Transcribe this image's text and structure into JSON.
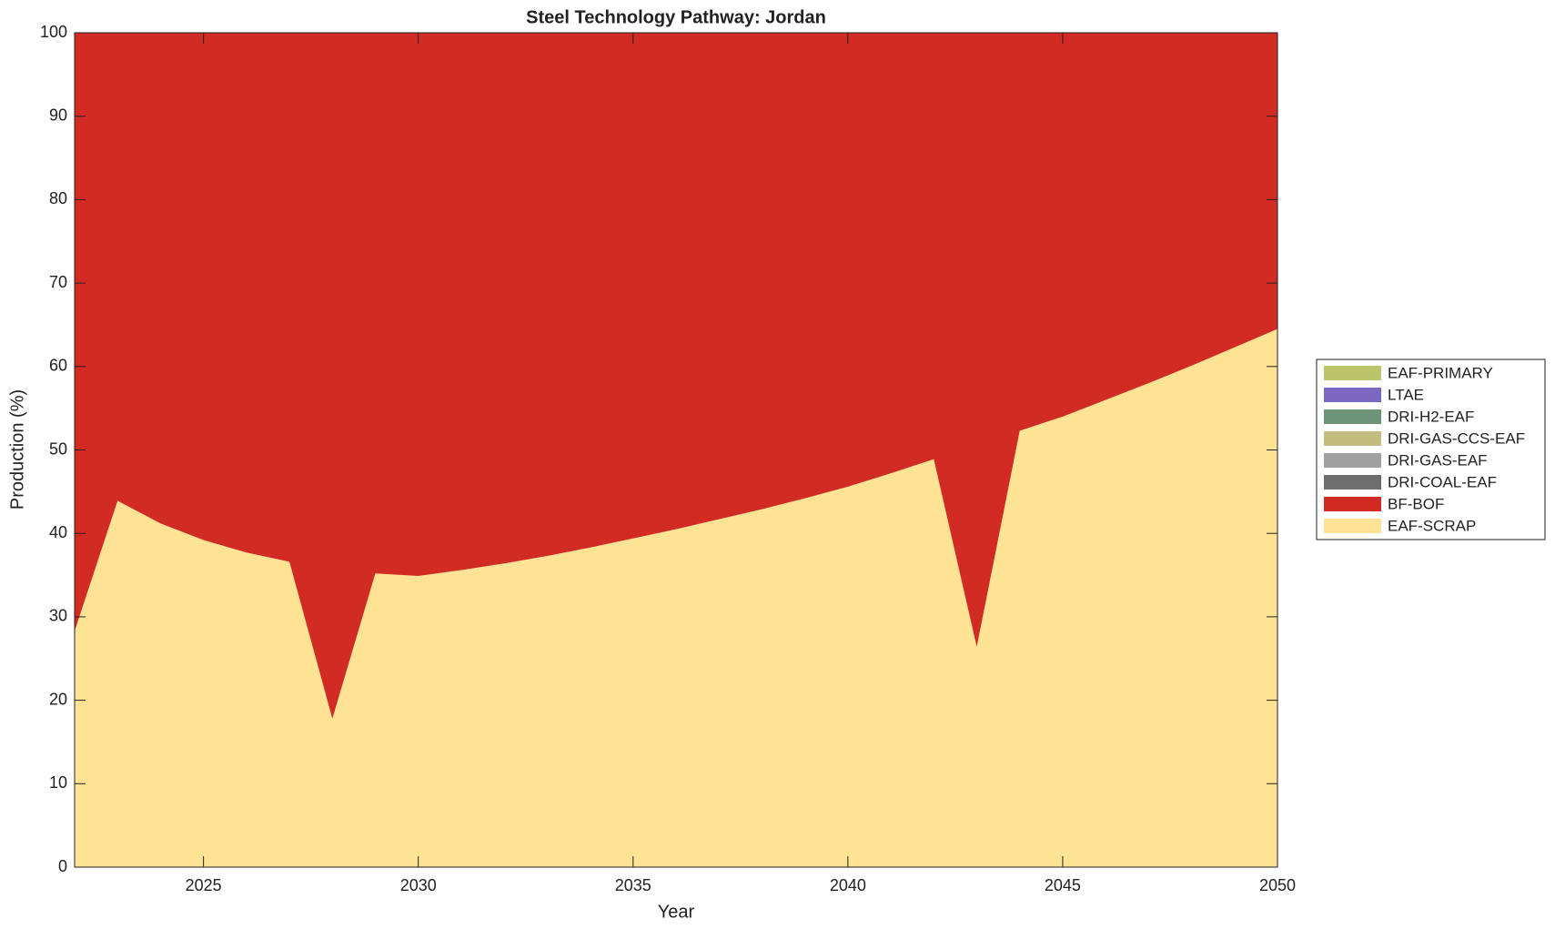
{
  "chart_data": {
    "type": "stacked-area",
    "title": "Steel Technology Pathway: Jordan",
    "xlabel": "Year",
    "ylabel": "Production (%)",
    "x": [
      2022,
      2023,
      2024,
      2025,
      2026,
      2027,
      2028,
      2029,
      2030,
      2031,
      2032,
      2033,
      2034,
      2035,
      2036,
      2037,
      2038,
      2039,
      2040,
      2041,
      2042,
      2043,
      2044,
      2045,
      2046,
      2047,
      2048,
      2049,
      2050
    ],
    "series": [
      {
        "name": "EAF-SCRAP",
        "color": "#fde393",
        "values": [
          28.3,
          43.9,
          41.2,
          39.2,
          37.7,
          36.6,
          17.8,
          35.2,
          34.9,
          35.6,
          36.4,
          37.3,
          38.3,
          39.4,
          40.5,
          41.7,
          42.9,
          44.2,
          45.6,
          47.2,
          48.9,
          26.4,
          52.3,
          54.0,
          56.0,
          58.0,
          60.1,
          62.3,
          64.5
        ]
      },
      {
        "name": "BF-BOF",
        "color": "#d12b24",
        "values": [
          71.7,
          56.1,
          58.8,
          60.8,
          62.3,
          63.4,
          82.2,
          64.8,
          65.1,
          64.4,
          63.6,
          62.7,
          61.7,
          60.6,
          59.5,
          58.3,
          57.1,
          55.8,
          54.4,
          52.8,
          51.1,
          73.6,
          47.7,
          46.0,
          44.0,
          42.0,
          39.9,
          37.7,
          35.5
        ]
      },
      {
        "name": "DRI-COAL-EAF",
        "color": "#6e6e6e",
        "values": [
          0,
          0,
          0,
          0,
          0,
          0,
          0,
          0,
          0,
          0,
          0,
          0,
          0,
          0,
          0,
          0,
          0,
          0,
          0,
          0,
          0,
          0,
          0,
          0,
          0,
          0,
          0,
          0,
          0
        ]
      },
      {
        "name": "DRI-GAS-EAF",
        "color": "#a0a0a0",
        "values": [
          0,
          0,
          0,
          0,
          0,
          0,
          0,
          0,
          0,
          0,
          0,
          0,
          0,
          0,
          0,
          0,
          0,
          0,
          0,
          0,
          0,
          0,
          0,
          0,
          0,
          0,
          0,
          0,
          0
        ]
      },
      {
        "name": "DRI-GAS-CCS-EAF",
        "color": "#c4bb80",
        "values": [
          0,
          0,
          0,
          0,
          0,
          0,
          0,
          0,
          0,
          0,
          0,
          0,
          0,
          0,
          0,
          0,
          0,
          0,
          0,
          0,
          0,
          0,
          0,
          0,
          0,
          0,
          0,
          0,
          0
        ]
      },
      {
        "name": "DRI-H2-EAF",
        "color": "#6e9478",
        "values": [
          0,
          0,
          0,
          0,
          0,
          0,
          0,
          0,
          0,
          0,
          0,
          0,
          0,
          0,
          0,
          0,
          0,
          0,
          0,
          0,
          0,
          0,
          0,
          0,
          0,
          0,
          0,
          0,
          0
        ]
      },
      {
        "name": "LTAE",
        "color": "#7b68c0",
        "values": [
          0,
          0,
          0,
          0,
          0,
          0,
          0,
          0,
          0,
          0,
          0,
          0,
          0,
          0,
          0,
          0,
          0,
          0,
          0,
          0,
          0,
          0,
          0,
          0,
          0,
          0,
          0,
          0,
          0
        ]
      },
      {
        "name": "EAF-PRIMARY",
        "color": "#bcc46a",
        "values": [
          0,
          0,
          0,
          0,
          0,
          0,
          0,
          0,
          0,
          0,
          0,
          0,
          0,
          0,
          0,
          0,
          0,
          0,
          0,
          0,
          0,
          0,
          0,
          0,
          0,
          0,
          0,
          0,
          0
        ]
      }
    ],
    "xlim": [
      2022,
      2050
    ],
    "xticks": [
      2025,
      2030,
      2035,
      2040,
      2045,
      2050
    ],
    "ylim": [
      0,
      100
    ],
    "yticks": [
      0,
      10,
      20,
      30,
      40,
      50,
      60,
      70,
      80,
      90,
      100
    ],
    "legend": "right"
  }
}
